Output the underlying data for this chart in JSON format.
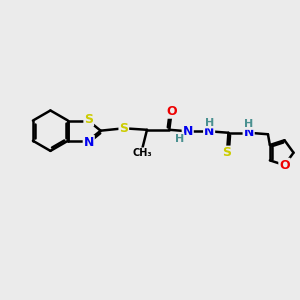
{
  "background_color": "#ebebeb",
  "atom_colors": {
    "C": "#000000",
    "N": "#0000ee",
    "O": "#ee0000",
    "S": "#cccc00",
    "H": "#4a9090"
  },
  "bond_color": "#000000",
  "bond_width": 1.8,
  "figsize": [
    3.0,
    3.0
  ],
  "dpi": 100
}
